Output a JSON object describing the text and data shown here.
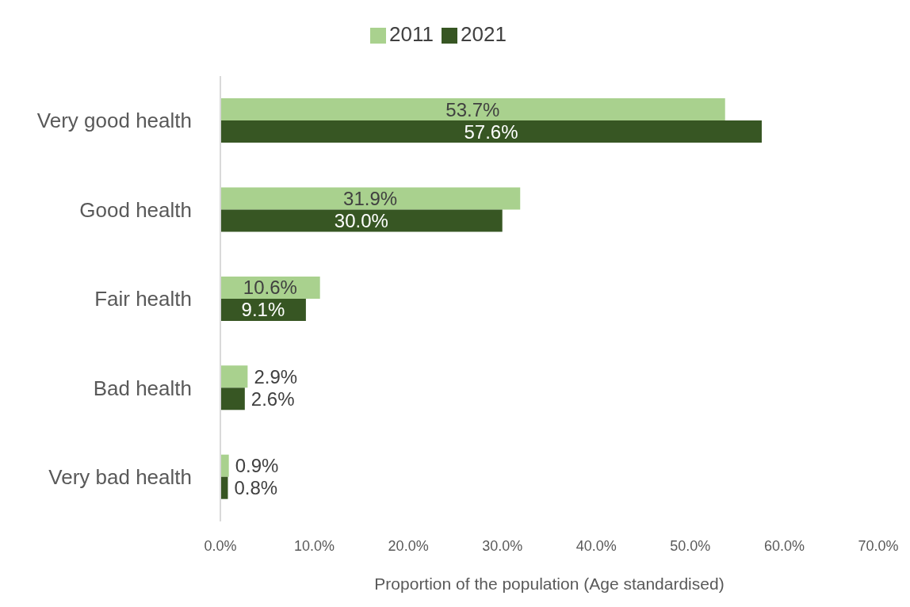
{
  "chart_data": {
    "type": "bar",
    "orientation": "horizontal",
    "xlabel": "Proportion of the population (Age standardised)",
    "categories": [
      "Very good health",
      "Good health",
      "Fair health",
      "Bad health",
      "Very bad health"
    ],
    "series": [
      {
        "name": "2011",
        "color": "#a9d18e",
        "values": [
          53.7,
          31.9,
          10.6,
          2.9,
          0.9
        ],
        "value_labels": [
          "53.7%",
          "31.9%",
          "10.6%",
          "2.9%",
          "0.9%"
        ]
      },
      {
        "name": "2021",
        "color": "#375623",
        "values": [
          57.6,
          30.0,
          9.1,
          2.6,
          0.8
        ],
        "value_labels": [
          "57.6%",
          "30.0%",
          "9.1%",
          "2.6%",
          "0.8%"
        ]
      }
    ],
    "xlim": [
      0,
      70
    ],
    "xticks": [
      {
        "value": 0,
        "label": "0.0%"
      },
      {
        "value": 10,
        "label": "10.0%"
      },
      {
        "value": 20,
        "label": "20.0%"
      },
      {
        "value": 30,
        "label": "30.0%"
      },
      {
        "value": 40,
        "label": "40.0%"
      },
      {
        "value": 50,
        "label": "50.0%"
      },
      {
        "value": 60,
        "label": "60.0%"
      },
      {
        "value": 70,
        "label": "70.0%"
      }
    ],
    "legend": "top"
  }
}
